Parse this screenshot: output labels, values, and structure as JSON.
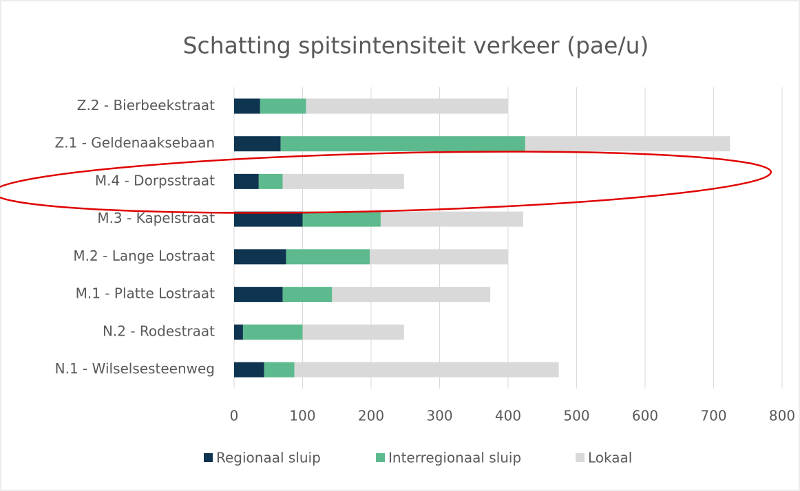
{
  "chart_data": {
    "type": "stacked_barh",
    "title": "Schatting spitsintensiteit verkeer (pae/u)",
    "categories": [
      "Z.2 - Bierbeekstraat",
      "Z.1 - Geldenaaksebaan",
      "M.4 - Dorpsstraat",
      "M.3 - Kapelstraat",
      "M.2 - Lange Lostraat",
      "M.1 - Platte Lostraat",
      "N.2 - Rodestraat",
      "N.1 - Wilselsesteenweg"
    ],
    "series": [
      {
        "name": "Regionaal sluip",
        "color": "#0e3450",
        "values": [
          38,
          68,
          36,
          100,
          76,
          71,
          13,
          44
        ]
      },
      {
        "name": "Interregionaal sluip",
        "color": "#5dba8e",
        "values": [
          67,
          357,
          35,
          114,
          122,
          72,
          87,
          44
        ]
      },
      {
        "name": "Lokaal",
        "color": "#d9d9d9",
        "values": [
          295,
          299,
          177,
          208,
          202,
          231,
          148,
          386
        ]
      }
    ],
    "xlim": [
      0,
      800
    ],
    "xticks": [
      0,
      100,
      200,
      300,
      400,
      500,
      600,
      700,
      800
    ],
    "grid": true,
    "legend": "bottom"
  }
}
